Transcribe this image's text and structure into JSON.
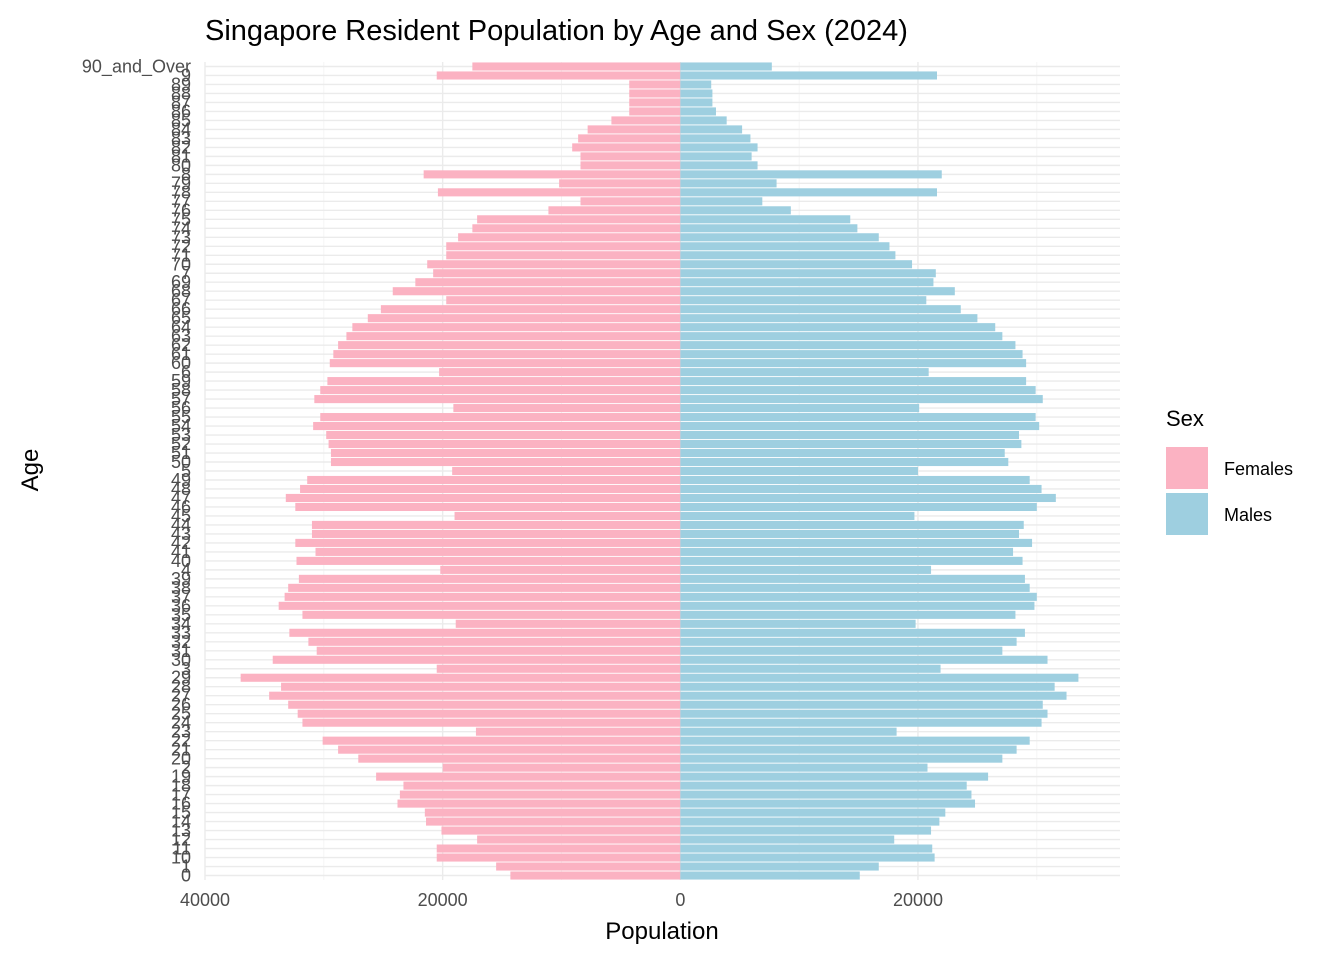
{
  "chart_data": {
    "type": "bar",
    "orientation": "horizontal",
    "layout": "population-pyramid",
    "title": "Singapore Resident Population by Age and Sex (2024)",
    "xlabel": "Population",
    "ylabel": "Age",
    "xlim": [
      -40000,
      37000
    ],
    "x_ticks": [
      -40000,
      -20000,
      0,
      20000
    ],
    "x_tick_labels": [
      "40000",
      "20000",
      "0",
      "20000"
    ],
    "grid": true,
    "legend": {
      "title": "Sex",
      "position": "right"
    },
    "categories": [
      "0",
      "1",
      "2",
      "3",
      "4",
      "5",
      "6",
      "7",
      "8",
      "9",
      "10",
      "11",
      "12",
      "13",
      "14",
      "15",
      "16",
      "17",
      "18",
      "19",
      "20",
      "21",
      "22",
      "23",
      "24",
      "25",
      "26",
      "27",
      "28",
      "29",
      "30",
      "31",
      "32",
      "33",
      "34",
      "35",
      "36",
      "37",
      "38",
      "39",
      "40",
      "41",
      "42",
      "43",
      "44",
      "45",
      "46",
      "47",
      "48",
      "49",
      "50",
      "51",
      "52",
      "53",
      "54",
      "55",
      "56",
      "57",
      "58",
      "59",
      "60",
      "61",
      "62",
      "63",
      "64",
      "65",
      "66",
      "67",
      "68",
      "69",
      "70",
      "71",
      "72",
      "73",
      "74",
      "75",
      "76",
      "77",
      "78",
      "79",
      "80",
      "81",
      "82",
      "83",
      "84",
      "85",
      "86",
      "87",
      "88",
      "89",
      "90_and_Over"
    ],
    "category_labels": [
      "0",
      "1",
      "10",
      "11",
      "12",
      "13",
      "14",
      "15",
      "16",
      "17",
      "18",
      "19",
      "2",
      "20",
      "21",
      "22",
      "23",
      "24",
      "25",
      "26",
      "27",
      "28",
      "29",
      "3",
      "30",
      "31",
      "32",
      "33",
      "34",
      "35",
      "36",
      "37",
      "38",
      "39",
      "4",
      "40",
      "41",
      "42",
      "43",
      "44",
      "45",
      "46",
      "47",
      "48",
      "49",
      "5",
      "50",
      "51",
      "52",
      "53",
      "54",
      "55",
      "56",
      "57",
      "58",
      "59",
      "6",
      "60",
      "61",
      "62",
      "63",
      "64",
      "65",
      "66",
      "67",
      "68",
      "69",
      "7",
      "70",
      "71",
      "72",
      "73",
      "74",
      "75",
      "76",
      "77",
      "78",
      "79",
      "8",
      "80",
      "81",
      "82",
      "83",
      "84",
      "85",
      "86",
      "87",
      "88",
      "89",
      "9",
      "90_and_Over"
    ],
    "series": [
      {
        "name": "Females",
        "color": "#fbb2c2",
        "values": [
          14300,
          15500,
          20000,
          20500,
          20200,
          19200,
          20300,
          20800,
          21600,
          20500,
          20500,
          20500,
          17100,
          20100,
          21400,
          21500,
          23800,
          23600,
          23300,
          25600,
          27100,
          28800,
          30100,
          17200,
          31800,
          32200,
          33000,
          34600,
          33600,
          37000,
          34300,
          30600,
          31300,
          32900,
          18900,
          31800,
          33800,
          33300,
          33000,
          32100,
          32300,
          30700,
          32400,
          31000,
          31000,
          19000,
          32400,
          33200,
          32000,
          31400,
          29400,
          29400,
          29600,
          29800,
          30900,
          30300,
          19100,
          30800,
          30300,
          29700,
          29500,
          29200,
          28800,
          28100,
          27600,
          26300,
          25200,
          19700,
          24200,
          22300,
          21300,
          19700,
          19700,
          18700,
          17500,
          17100,
          11100,
          8400,
          20400,
          10200,
          8400,
          8400,
          9100,
          8600,
          7800,
          5800,
          4300,
          4300,
          4300,
          4300,
          17500
        ]
      },
      {
        "name": "Males",
        "color": "#9ecfe0",
        "values": [
          15100,
          16700,
          20800,
          21900,
          21100,
          20000,
          20900,
          21500,
          22000,
          21600,
          21400,
          21200,
          18000,
          21100,
          21800,
          22300,
          24800,
          24500,
          24100,
          25900,
          27100,
          28300,
          29400,
          18200,
          30400,
          30900,
          30500,
          32500,
          31500,
          33500,
          30900,
          27100,
          28300,
          29000,
          19800,
          28200,
          29800,
          30000,
          29400,
          29000,
          28800,
          28000,
          29600,
          28500,
          28900,
          19700,
          30000,
          31600,
          30400,
          29400,
          27600,
          27300,
          28700,
          28500,
          30200,
          29900,
          20100,
          30500,
          29900,
          29100,
          29100,
          28800,
          28200,
          27100,
          26500,
          25000,
          23600,
          20700,
          23100,
          21300,
          19500,
          18100,
          17600,
          16700,
          14900,
          14300,
          9300,
          6900,
          21600,
          8100,
          6500,
          6000,
          6500,
          5900,
          5200,
          3900,
          3000,
          2700,
          2700,
          2600,
          7700
        ]
      }
    ]
  }
}
